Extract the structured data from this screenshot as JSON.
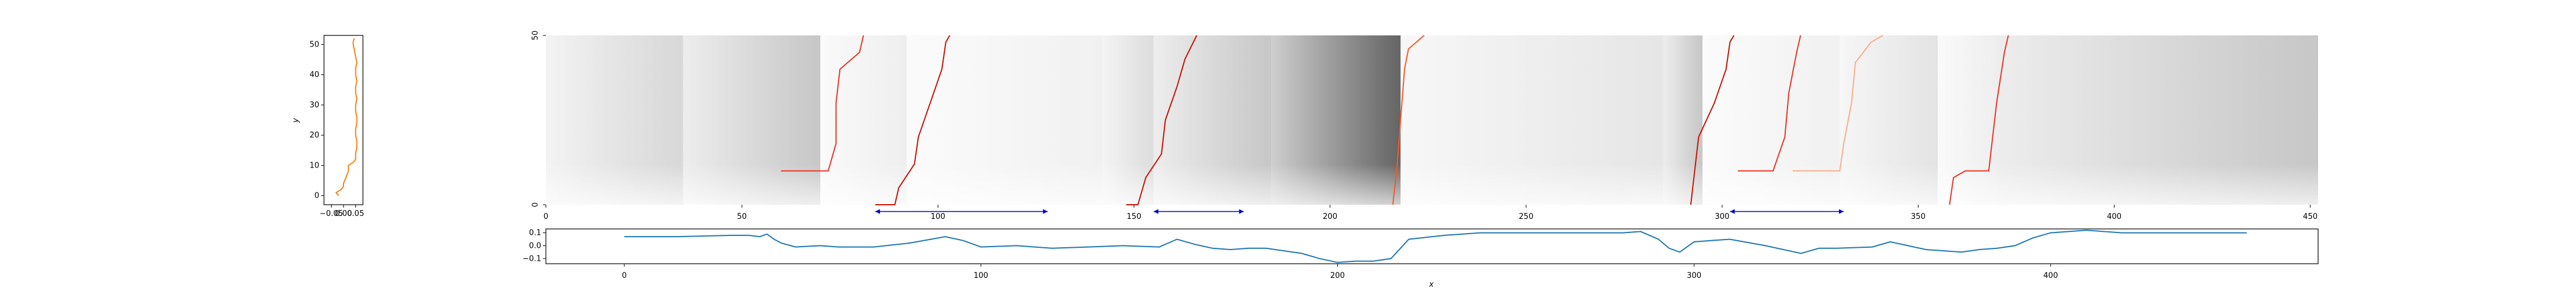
{
  "chart_data": [
    {
      "id": "left-profile",
      "type": "line",
      "ylabel": "y",
      "xlim": [
        -0.08,
        0.08
      ],
      "ylim": [
        -3,
        53
      ],
      "x_ticks": [
        -0.05,
        0.0,
        0.05
      ],
      "x_tick_labels": [
        "−0.05",
        "0.00",
        "0.05"
      ],
      "y_ticks": [
        0,
        10,
        20,
        30,
        40,
        50
      ],
      "y_tick_labels": [
        "0",
        "10",
        "20",
        "30",
        "40",
        "50"
      ],
      "grid": false,
      "color": "#ff7f0e",
      "series": [
        {
          "y": [
            0,
            1,
            2,
            3,
            4,
            6,
            8,
            10,
            11,
            12,
            13,
            14,
            16,
            18,
            20,
            22,
            24,
            26,
            28,
            30,
            32,
            34,
            36,
            38,
            40,
            42,
            44,
            46,
            48,
            50,
            51,
            52
          ],
          "x": [
            -0.02,
            -0.03,
            -0.01,
            0.0,
            0.0,
            0.01,
            0.02,
            0.02,
            0.04,
            0.05,
            0.05,
            0.05,
            0.055,
            0.055,
            0.05,
            0.05,
            0.055,
            0.055,
            0.05,
            0.05,
            0.055,
            0.05,
            0.05,
            0.055,
            0.05,
            0.05,
            0.055,
            0.05,
            0.045,
            0.04,
            0.04,
            0.045
          ]
        }
      ]
    },
    {
      "id": "heatmap",
      "type": "heatmap",
      "xlim": [
        0,
        452
      ],
      "ylim": [
        0,
        50
      ],
      "x_ticks": [
        0,
        50,
        100,
        150,
        200,
        250,
        300,
        350,
        400,
        450
      ],
      "x_tick_labels": [
        "0",
        "50",
        "100",
        "150",
        "200",
        "250",
        "300",
        "350",
        "400",
        "450"
      ],
      "y_ticks": [
        0,
        50
      ],
      "y_tick_labels": [
        "0",
        "50"
      ],
      "colormap": "greys",
      "segments": [
        {
          "x0": 0,
          "x1": 35,
          "level": 0.14
        },
        {
          "x0": 35,
          "x1": 70,
          "level": 0.2
        },
        {
          "x0": 70,
          "x1": 92,
          "level": 0.06
        },
        {
          "x0": 92,
          "x1": 142,
          "level": 0.05
        },
        {
          "x0": 142,
          "x1": 155,
          "level": 0.12
        },
        {
          "x0": 155,
          "x1": 185,
          "level": 0.2
        },
        {
          "x0": 185,
          "x1": 218,
          "level": 0.55
        },
        {
          "x0": 218,
          "x1": 285,
          "level": 0.09
        },
        {
          "x0": 285,
          "x1": 295,
          "level": 0.2
        },
        {
          "x0": 295,
          "x1": 330,
          "level": 0.05
        },
        {
          "x0": 330,
          "x1": 355,
          "level": 0.1
        },
        {
          "x0": 355,
          "x1": 370,
          "level": 0.06
        },
        {
          "x0": 370,
          "x1": 452,
          "level": 0.2
        }
      ],
      "red_paths": [
        {
          "color": "#ee3322",
          "points": [
            [
              60,
              10
            ],
            [
              72,
              10
            ],
            [
              74,
              18
            ],
            [
              74,
              30
            ],
            [
              75,
              40
            ],
            [
              80,
              45
            ],
            [
              81,
              50
            ]
          ]
        },
        {
          "color": "#cc1100",
          "points": [
            [
              84,
              0
            ],
            [
              89,
              0
            ],
            [
              90,
              5
            ],
            [
              94,
              12
            ],
            [
              95,
              20
            ],
            [
              98,
              30
            ],
            [
              101,
              40
            ],
            [
              102,
              48
            ],
            [
              103,
              50
            ]
          ]
        },
        {
          "color": "#cc1100",
          "points": [
            [
              148,
              0
            ],
            [
              151,
              0
            ],
            [
              153,
              8
            ],
            [
              157,
              15
            ],
            [
              158,
              25
            ],
            [
              161,
              35
            ],
            [
              163,
              43
            ],
            [
              166,
              50
            ]
          ]
        },
        {
          "color": "#ff5522",
          "points": [
            [
              216,
              0
            ],
            [
              217,
              10
            ],
            [
              218,
              25
            ],
            [
              219,
              40
            ],
            [
              220,
              46
            ],
            [
              224,
              50
            ]
          ]
        },
        {
          "color": "#cc1100",
          "points": [
            [
              292,
              0
            ],
            [
              293,
              10
            ],
            [
              294,
              20
            ],
            [
              298,
              30
            ],
            [
              301,
              40
            ],
            [
              302,
              48
            ],
            [
              303,
              50
            ]
          ]
        },
        {
          "color": "#ee3322",
          "points": [
            [
              304,
              10
            ],
            [
              313,
              10
            ],
            [
              316,
              20
            ],
            [
              317,
              33
            ],
            [
              319,
              45
            ],
            [
              320,
              50
            ]
          ]
        },
        {
          "color": "#ffaa88",
          "points": [
            [
              318,
              10
            ],
            [
              330,
              10
            ],
            [
              331,
              18
            ],
            [
              333,
              30
            ],
            [
              334,
              42
            ],
            [
              338,
              48
            ],
            [
              341,
              50
            ]
          ]
        },
        {
          "color": "#ee3322",
          "points": [
            [
              358,
              0
            ],
            [
              359,
              8
            ],
            [
              362,
              10
            ],
            [
              368,
              10
            ],
            [
              370,
              30
            ],
            [
              372,
              45
            ],
            [
              373,
              50
            ]
          ]
        }
      ],
      "blue_arrows": [
        {
          "x0": 84,
          "x1": 128,
          "y": -2
        },
        {
          "x0": 155,
          "x1": 178,
          "y": -2
        },
        {
          "x0": 302,
          "x1": 331,
          "y": -2
        }
      ]
    },
    {
      "id": "bottom-profile",
      "type": "line",
      "xlabel": "x",
      "xlim": [
        -22,
        475
      ],
      "ylim": [
        -0.14,
        0.13
      ],
      "x_ticks": [
        0,
        100,
        200,
        300,
        400
      ],
      "x_tick_labels": [
        "0",
        "100",
        "200",
        "300",
        "400"
      ],
      "y_ticks": [
        0.1,
        0.0,
        -0.1
      ],
      "y_tick_labels": [
        "0.1",
        "0.0",
        "−0.1"
      ],
      "grid": false,
      "color": "#1f77b4",
      "series": [
        {
          "x": [
            0,
            15,
            30,
            35,
            38,
            40,
            42,
            44,
            48,
            55,
            60,
            70,
            80,
            90,
            95,
            100,
            110,
            120,
            130,
            140,
            150,
            155,
            160,
            165,
            170,
            175,
            180,
            185,
            190,
            195,
            200,
            205,
            210,
            215,
            220,
            230,
            240,
            250,
            260,
            270,
            280,
            285,
            290,
            293,
            296,
            300,
            310,
            320,
            330,
            335,
            340,
            350,
            355,
            360,
            365,
            370,
            375,
            380,
            385,
            390,
            395,
            400,
            410,
            420,
            430,
            440,
            450,
            455
          ],
          "y": [
            0.07,
            0.07,
            0.08,
            0.08,
            0.07,
            0.09,
            0.05,
            0.02,
            -0.01,
            0.0,
            -0.01,
            -0.01,
            0.02,
            0.07,
            0.04,
            -0.01,
            0.0,
            -0.02,
            -0.01,
            0.0,
            -0.01,
            0.05,
            0.01,
            -0.02,
            -0.03,
            -0.02,
            -0.02,
            -0.04,
            -0.06,
            -0.1,
            -0.13,
            -0.12,
            -0.12,
            -0.1,
            0.05,
            0.08,
            0.1,
            0.1,
            0.1,
            0.1,
            0.1,
            0.11,
            0.05,
            -0.02,
            -0.05,
            0.03,
            0.05,
            0.0,
            -0.06,
            -0.02,
            -0.02,
            -0.01,
            0.03,
            0.0,
            -0.03,
            -0.04,
            -0.05,
            -0.03,
            -0.02,
            0.0,
            0.06,
            0.1,
            0.12,
            0.1,
            0.1,
            0.1,
            0.1,
            0.1
          ]
        }
      ]
    }
  ]
}
